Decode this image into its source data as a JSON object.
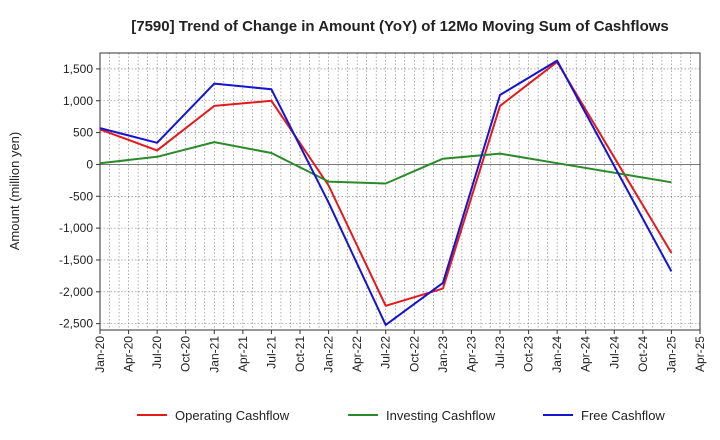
{
  "chart_data": {
    "type": "line",
    "title": "[7590]  Trend of Change in Amount (YoY) of 12Mo Moving Sum of Cashflows",
    "xlabel": "",
    "ylabel": "Amount (million yen)",
    "ylim": [
      -2600,
      1750
    ],
    "yticks": [
      1500,
      1000,
      500,
      0,
      -500,
      -1000,
      -1500,
      -2000,
      -2500
    ],
    "ytick_labels": [
      "1,500",
      "1,000",
      "500",
      "0",
      "-500",
      "-1,000",
      "-1,500",
      "-2,000",
      "-2,500"
    ],
    "categories": [
      "Jan-20",
      "Apr-20",
      "Jul-20",
      "Oct-20",
      "Jan-21",
      "Apr-21",
      "Jul-21",
      "Oct-21",
      "Jan-22",
      "Apr-22",
      "Jul-22",
      "Oct-22",
      "Jan-23",
      "Apr-23",
      "Jul-23",
      "Oct-23",
      "Jan-24",
      "Apr-24",
      "Jul-24",
      "Oct-24",
      "Jan-25",
      "Apr-25"
    ],
    "grid": true,
    "legend_position": "bottom",
    "series": [
      {
        "name": "Operating Cashflow",
        "color": "#e31a1c",
        "points": [
          [
            "Jan-20",
            550
          ],
          [
            "Jul-20",
            220
          ],
          [
            "Jan-21",
            920
          ],
          [
            "Jul-21",
            1000
          ],
          [
            "Jan-22",
            -330
          ],
          [
            "Jul-22",
            -2220
          ],
          [
            "Jan-23",
            -1950
          ],
          [
            "Jul-23",
            920
          ],
          [
            "Jan-24",
            1610
          ],
          [
            "Jan-25",
            -1390
          ]
        ]
      },
      {
        "name": "Investing Cashflow",
        "color": "#2a8a2a",
        "points": [
          [
            "Jan-20",
            20
          ],
          [
            "Jul-20",
            120
          ],
          [
            "Jan-21",
            350
          ],
          [
            "Jul-21",
            180
          ],
          [
            "Jan-22",
            -270
          ],
          [
            "Jul-22",
            -300
          ],
          [
            "Jan-23",
            90
          ],
          [
            "Jul-23",
            170
          ],
          [
            "Jan-24",
            20
          ],
          [
            "Jan-25",
            -280
          ]
        ]
      },
      {
        "name": "Free Cashflow",
        "color": "#1515d0",
        "points": [
          [
            "Jan-20",
            570
          ],
          [
            "Jul-20",
            340
          ],
          [
            "Jan-21",
            1270
          ],
          [
            "Jul-21",
            1180
          ],
          [
            "Jan-22",
            -600
          ],
          [
            "Jul-22",
            -2520
          ],
          [
            "Jan-23",
            -1860
          ],
          [
            "Jul-23",
            1090
          ],
          [
            "Jan-24",
            1630
          ],
          [
            "Jan-25",
            -1680
          ]
        ]
      }
    ]
  }
}
